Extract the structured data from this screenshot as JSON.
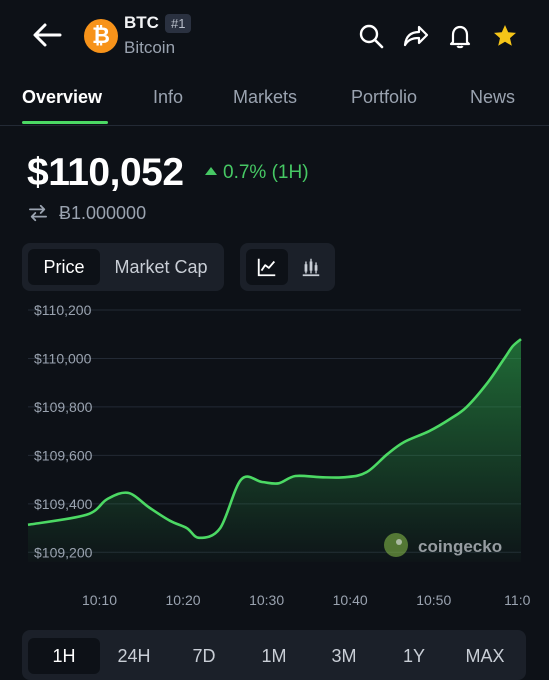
{
  "header": {
    "symbol": "BTC",
    "rank": "#1",
    "name": "Bitcoin",
    "coin_glyph": "₿"
  },
  "tabs": [
    {
      "label": "Overview",
      "active": true
    },
    {
      "label": "Info"
    },
    {
      "label": "Markets"
    },
    {
      "label": "Portfolio"
    },
    {
      "label": "News"
    }
  ],
  "price": {
    "value": "$110,052",
    "change": "0.7% (1H)",
    "btc_value": "Ƀ1.000000"
  },
  "metric_toggle": {
    "price_label": "Price",
    "market_cap_label": "Market Cap"
  },
  "chart_type_toggle": {
    "line_icon": "line-chart-icon",
    "candle_icon": "candlestick-chart-icon"
  },
  "watermark": "coingecko",
  "colors": {
    "accent_green": "#4cd964",
    "up_green": "#46c864",
    "bitcoin_orange": "#f7931a",
    "star": "#f5c518"
  },
  "chart_data": {
    "type": "area",
    "title": "",
    "xlabel": "",
    "ylabel": "",
    "x_ticks": [
      "10:10",
      "10:20",
      "10:30",
      "10:40",
      "10:50",
      "11:0"
    ],
    "y_ticks": [
      "$110,200",
      "$110,000",
      "$109,800",
      "$109,600",
      "$109,400",
      "$109,200"
    ],
    "y_tick_values": [
      110200,
      110000,
      109800,
      109600,
      109400,
      109200
    ],
    "ylim": [
      109160,
      110200
    ],
    "x_minutes": [
      10.0,
      12.5,
      15.0,
      17.5,
      20.0,
      22.0,
      23.5,
      26.0,
      28.5,
      31.0,
      33.0,
      35.0,
      38.0,
      41.0,
      43.5,
      46.0,
      48.0,
      51.0,
      53.5,
      55.5,
      58.0,
      60.0,
      61.0,
      62.0
    ],
    "values": [
      109355,
      109420,
      109445,
      109385,
      109330,
      109300,
      109260,
      109300,
      109500,
      109490,
      109485,
      109515,
      109510,
      109510,
      109530,
      109605,
      109655,
      109700,
      109750,
      109800,
      109900,
      110000,
      110050,
      110080
    ],
    "x_range_minutes": [
      3,
      62
    ],
    "grid": true,
    "legend": "none"
  },
  "ranges": [
    {
      "label": "1H",
      "active": true
    },
    {
      "label": "24H"
    },
    {
      "label": "7D"
    },
    {
      "label": "1M"
    },
    {
      "label": "3M"
    },
    {
      "label": "1Y"
    },
    {
      "label": "MAX"
    }
  ]
}
